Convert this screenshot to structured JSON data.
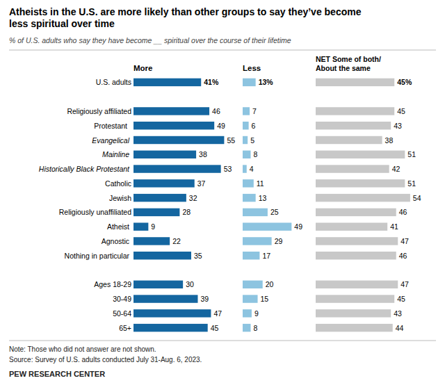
{
  "chart_data": {
    "type": "bar",
    "orientation": "horizontal",
    "title": "Atheists in the U.S. are more likely than other groups to say they’ve become\nless spiritual over time",
    "subtitle": "% of U.S. adults who say they have become __ spiritual over the course of their lifetime",
    "categories": [
      "U.S. adults",
      null,
      "Religiously affiliated",
      "Protestant",
      "Evangelical",
      "Mainline",
      "Historically Black Protestant",
      "Catholic",
      "Jewish",
      "Religiously unaffiliated",
      "Atheist",
      "Agnostic",
      "Nothing in particular",
      null,
      "Ages 18-29",
      "30-49",
      "50-64",
      "65+"
    ],
    "series": [
      {
        "name": "More",
        "color": "#1466a0",
        "values": [
          41,
          null,
          46,
          49,
          55,
          38,
          53,
          37,
          32,
          28,
          9,
          22,
          35,
          null,
          30,
          39,
          47,
          45
        ],
        "value_labels": [
          "41%",
          null,
          "46",
          "49",
          "55",
          "38",
          "53",
          "37",
          "32",
          "28",
          "9",
          "22",
          "35",
          null,
          "30",
          "39",
          "47",
          "45"
        ]
      },
      {
        "name": "Less",
        "color": "#8dc4e0",
        "values": [
          13,
          null,
          7,
          6,
          5,
          8,
          4,
          11,
          13,
          25,
          49,
          29,
          17,
          null,
          20,
          15,
          9,
          8
        ],
        "value_labels": [
          "13%",
          null,
          "7",
          "6",
          "5",
          "8",
          "4",
          "11",
          "13",
          "25",
          "49",
          "29",
          "17",
          null,
          "20",
          "15",
          "9",
          "8"
        ]
      },
      {
        "name": "NET Some of both/\nAbout the same",
        "color": "#c8c8c8",
        "values": [
          45,
          null,
          45,
          43,
          38,
          51,
          42,
          51,
          54,
          46,
          41,
          47,
          46,
          null,
          47,
          45,
          43,
          44
        ],
        "value_labels": [
          "45%",
          null,
          "45",
          "43",
          "38",
          "51",
          "42",
          "51",
          "54",
          "46",
          "41",
          "47",
          "46",
          null,
          "47",
          "45",
          "43",
          "44"
        ]
      }
    ],
    "xlim": [
      0,
      62
    ],
    "tick_labels": false,
    "data_labels": true,
    "grid": false,
    "annotations": [
      "Note: Those who did not answer are not shown.",
      "Source: Survey of U.S. adults conducted July 31-Aug. 6, 2023.",
      "PEW RESEARCH CENTER"
    ]
  }
}
